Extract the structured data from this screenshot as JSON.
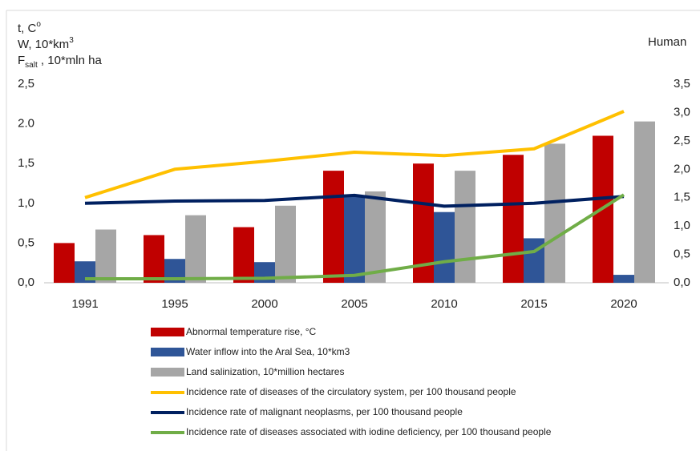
{
  "chart_data": {
    "type": "bar",
    "y_axis_label": [
      {
        "base": "t, C",
        "sup": "o"
      },
      {
        "base": "W, 10*km",
        "sup": "3"
      },
      {
        "base": "F",
        "sub": "salt",
        "rest": " , 10*mln ha"
      }
    ],
    "y2_axis_label": "Human",
    "categories": [
      "1991",
      "1995",
      "2000",
      "2005",
      "2010",
      "2015",
      "2020"
    ],
    "ylim": [
      0,
      2.5
    ],
    "yticks": [
      {
        "value": 0,
        "label": "0,0"
      },
      {
        "value": 0.5,
        "label": "0,5"
      },
      {
        "value": 1,
        "label": "1,0"
      },
      {
        "value": 1.5,
        "label": "1,5"
      },
      {
        "value": 2,
        "label": "2.0"
      },
      {
        "value": 2.5,
        "label": "2,5"
      }
    ],
    "y2lim": [
      0,
      3.5
    ],
    "y2ticks": [
      {
        "value": 0,
        "label": "0,0"
      },
      {
        "value": 0.5,
        "label": "0,5"
      },
      {
        "value": 1,
        "label": "1,0"
      },
      {
        "value": 1.5,
        "label": "1,5"
      },
      {
        "value": 2,
        "label": "2,0"
      },
      {
        "value": 2.5,
        "label": "2,5"
      },
      {
        "value": 3,
        "label": "3,0"
      },
      {
        "value": 3.5,
        "label": "3,5"
      }
    ],
    "grid": false,
    "legend": "bottom",
    "series": [
      {
        "name": "Abnormal temperature rise, °C",
        "type": "bar",
        "color": "#c00000",
        "values": [
          0.5,
          0.6,
          0.7,
          1.41,
          1.5,
          1.61,
          1.85
        ]
      },
      {
        "name": "Water inflow into the Aral Sea, 10*km3",
        "type": "bar",
        "color": "#2f5597",
        "values": [
          0.27,
          0.3,
          0.26,
          1.09,
          0.89,
          0.56,
          0.1
        ]
      },
      {
        "name": "Land salinization, 10*million hectares",
        "type": "bar",
        "color": "#a6a6a6",
        "values": [
          0.67,
          0.85,
          0.97,
          1.15,
          1.41,
          1.75,
          2.03
        ]
      },
      {
        "name": "Incidence rate of diseases of the circulatory system, per 100 thousand people",
        "type": "line",
        "axis": "y2",
        "color": "#ffc000",
        "values": [
          1.5,
          2.0,
          2.14,
          2.3,
          2.24,
          2.36,
          3.02
        ]
      },
      {
        "name": "Incidence rate of malignant neoplasms, per 100 thousand people",
        "type": "line",
        "axis": "y2",
        "color": "#002060",
        "values": [
          1.4,
          1.44,
          1.45,
          1.54,
          1.35,
          1.4,
          1.52
        ]
      },
      {
        "name": "Incidence rate of diseases associated with iodine deficiency, per 100 thousand people",
        "type": "line",
        "axis": "y2",
        "color": "#70ad47",
        "values": [
          0.07,
          0.07,
          0.08,
          0.13,
          0.37,
          0.55,
          1.55
        ]
      }
    ]
  }
}
